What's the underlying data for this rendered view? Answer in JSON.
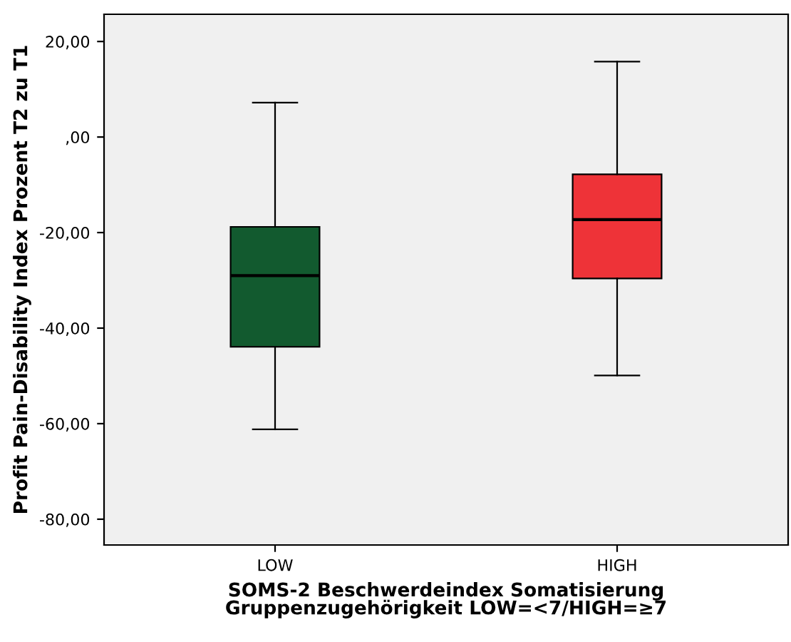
{
  "chart_data": {
    "type": "box",
    "xlabel": "SOMS-2 Beschwerdeindex Somatisierung\nGruppenzugehörigkeit LOW=<7/HIGH=≥7",
    "ylabel": "Profit Pain-Disability Index Prozent T2 zu T1",
    "categories": [
      "LOW",
      "HIGH"
    ],
    "colors": [
      "#125a2f",
      "#ee3338"
    ],
    "boxes": [
      {
        "low": -61.2,
        "q1": -43.9,
        "median": -29.0,
        "q3": -18.8,
        "high": 7.2
      },
      {
        "low": -49.9,
        "q1": -29.6,
        "median": -17.3,
        "q3": -7.8,
        "high": 15.8
      }
    ],
    "ylim": [
      -85.4,
      25.7
    ],
    "yticks": [
      {
        "value": -80,
        "label": "-80,00"
      },
      {
        "value": -60,
        "label": "-60,00"
      },
      {
        "value": -40,
        "label": "-40,00"
      },
      {
        "value": -20,
        "label": "-20,00"
      },
      {
        "value": 0,
        "label": ",00"
      },
      {
        "value": 20,
        "label": "20,00"
      }
    ],
    "grid": false
  }
}
